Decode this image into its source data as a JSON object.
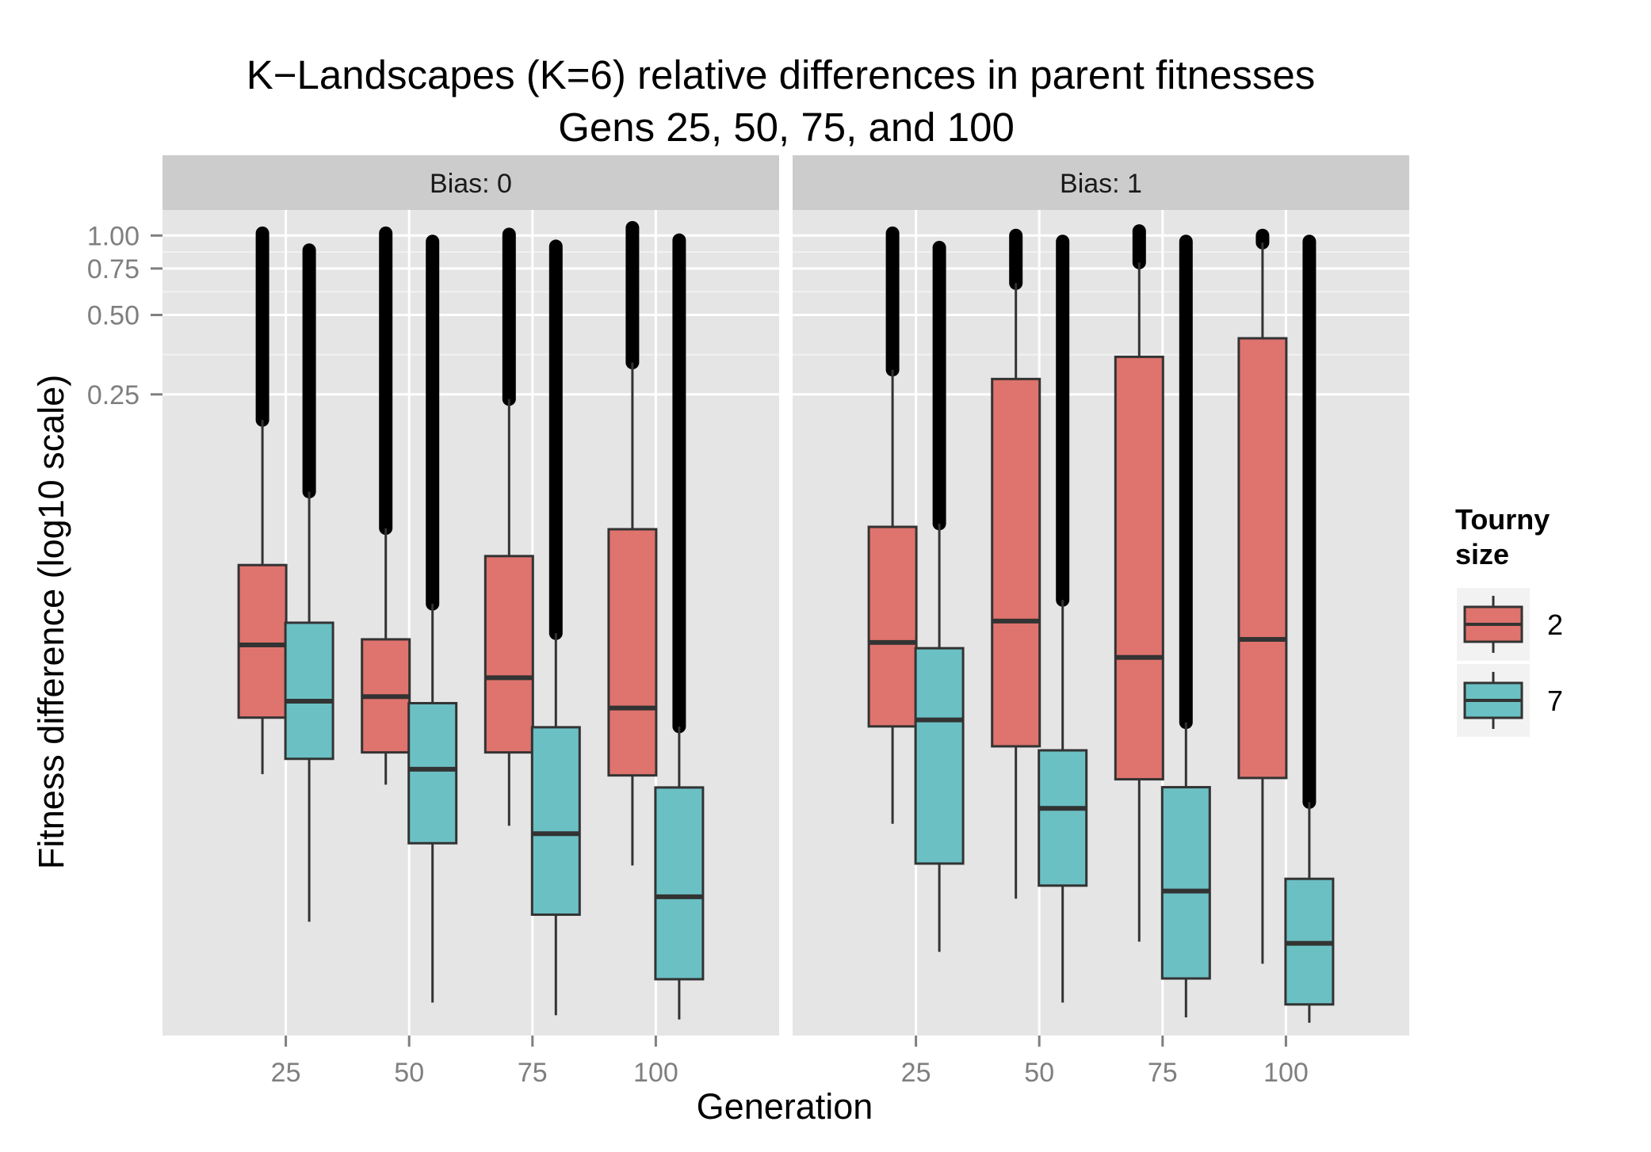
{
  "chart_data": {
    "type": "boxplot",
    "title": "K−Landscapes (K=6) relative differences in parent fitnesses",
    "subtitle": "Gens 25, 50, 75, and 100",
    "xlabel": "Generation",
    "ylabel": "Fitness difference (log10 scale)",
    "y_scale": "log10",
    "y_ticks": [
      1.0,
      0.75,
      0.5,
      0.25
    ],
    "y_tick_labels": [
      "1.00",
      "0.75",
      "0.50",
      "0.25"
    ],
    "ylim": [
      0.00093,
      1.25
    ],
    "categories": [
      25,
      50,
      75,
      100
    ],
    "grid": true,
    "legend": {
      "title_line1": "Tourny",
      "title_line2": "size",
      "position": "right",
      "items": [
        {
          "label": "2",
          "color": "#DF736D"
        },
        {
          "label": "7",
          "color": "#6BC0C4"
        }
      ]
    },
    "panels": [
      {
        "strip_label": "Bias: 0",
        "series": [
          {
            "name": "2",
            "color": "#DF736D",
            "boxes": [
              {
                "x": 25,
                "whisker_low": 0.0091,
                "q1": 0.0149,
                "median": 0.0281,
                "q3": 0.0564,
                "whisker_high": 0.2,
                "outlier_low": 0.2,
                "outlier_high": 1.02
              },
              {
                "x": 50,
                "whisker_low": 0.0083,
                "q1": 0.011,
                "median": 0.0179,
                "q3": 0.0295,
                "whisker_high": 0.0778,
                "outlier_low": 0.0778,
                "outlier_high": 1.02
              },
              {
                "x": 75,
                "whisker_low": 0.0058,
                "q1": 0.011,
                "median": 0.0211,
                "q3": 0.061,
                "whisker_high": 0.24,
                "outlier_low": 0.24,
                "outlier_high": 1.01
              },
              {
                "x": 100,
                "whisker_low": 0.0041,
                "q1": 0.009,
                "median": 0.0162,
                "q3": 0.0771,
                "whisker_high": 0.33,
                "outlier_low": 0.33,
                "outlier_high": 1.07
              }
            ]
          },
          {
            "name": "7",
            "color": "#6BC0C4",
            "boxes": [
              {
                "x": 25,
                "whisker_low": 0.00251,
                "q1": 0.0104,
                "median": 0.0172,
                "q3": 0.0341,
                "whisker_high": 0.107,
                "outlier_low": 0.107,
                "outlier_high": 0.88
              },
              {
                "x": 50,
                "whisker_low": 0.00124,
                "q1": 0.00498,
                "median": 0.0095,
                "q3": 0.0169,
                "whisker_high": 0.0402,
                "outlier_low": 0.0402,
                "outlier_high": 0.95
              },
              {
                "x": 75,
                "whisker_low": 0.00111,
                "q1": 0.00267,
                "median": 0.00541,
                "q3": 0.0137,
                "whisker_high": 0.0311,
                "outlier_low": 0.0311,
                "outlier_high": 0.91
              },
              {
                "x": 100,
                "whisker_low": 0.00107,
                "q1": 0.00152,
                "median": 0.00312,
                "q3": 0.0081,
                "whisker_high": 0.0138,
                "outlier_low": 0.0138,
                "outlier_high": 0.96
              }
            ]
          }
        ]
      },
      {
        "strip_label": "Bias: 1",
        "series": [
          {
            "name": "2",
            "color": "#DF736D",
            "boxes": [
              {
                "x": 25,
                "whisker_low": 0.0059,
                "q1": 0.0138,
                "median": 0.0287,
                "q3": 0.0787,
                "whisker_high": 0.31,
                "outlier_low": 0.31,
                "outlier_high": 1.02
              },
              {
                "x": 50,
                "whisker_low": 0.00307,
                "q1": 0.0116,
                "median": 0.0346,
                "q3": 0.286,
                "whisker_high": 0.66,
                "outlier_low": 0.66,
                "outlier_high": 1.0
              },
              {
                "x": 75,
                "whisker_low": 0.00211,
                "q1": 0.0087,
                "median": 0.0252,
                "q3": 0.347,
                "whisker_high": 0.79,
                "outlier_low": 0.79,
                "outlier_high": 1.04
              },
              {
                "x": 100,
                "whisker_low": 0.00174,
                "q1": 0.0088,
                "median": 0.0295,
                "q3": 0.408,
                "whisker_high": 0.94,
                "outlier_low": 0.94,
                "outlier_high": 1.0
              }
            ]
          },
          {
            "name": "7",
            "color": "#6BC0C4",
            "boxes": [
              {
                "x": 25,
                "whisker_low": 0.00193,
                "q1": 0.00417,
                "median": 0.0146,
                "q3": 0.0273,
                "whisker_high": 0.081,
                "outlier_low": 0.081,
                "outlier_high": 0.9
              },
              {
                "x": 50,
                "whisker_low": 0.00124,
                "q1": 0.00344,
                "median": 0.00675,
                "q3": 0.0112,
                "whisker_high": 0.0416,
                "outlier_low": 0.0416,
                "outlier_high": 0.95
              },
              {
                "x": 75,
                "whisker_low": 0.00109,
                "q1": 0.00153,
                "median": 0.00328,
                "q3": 0.00812,
                "whisker_high": 0.0143,
                "outlier_low": 0.0143,
                "outlier_high": 0.95
              },
              {
                "x": 100,
                "whisker_low": 0.00104,
                "q1": 0.00122,
                "median": 0.00208,
                "q3": 0.00365,
                "whisker_high": 0.00713,
                "outlier_low": 0.00713,
                "outlier_high": 0.95
              }
            ]
          }
        ]
      }
    ]
  }
}
